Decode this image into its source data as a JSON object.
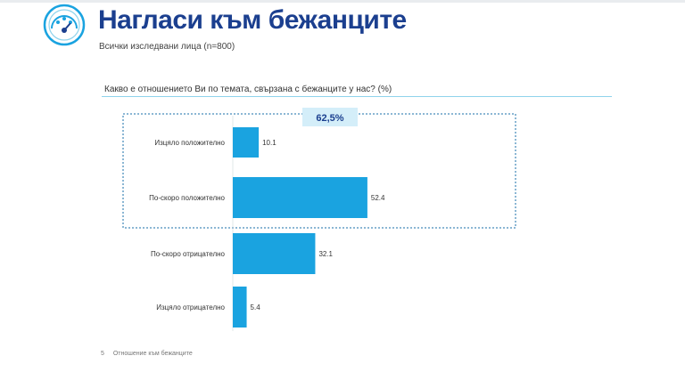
{
  "header": {
    "title": "Нагласи към бежанците",
    "subtitle": "Всички изследвани лица  (n=800)"
  },
  "question": "Какво е отношението Ви по темата, свързана с бежанците у нас? (%)",
  "highlight": {
    "label": "62,5%"
  },
  "colors": {
    "bar": "#1aa3e0",
    "title": "#1b3f8f",
    "accent": "#8fd3ec",
    "box_border": "#1a6fa8"
  },
  "chart_data": {
    "type": "bar",
    "orientation": "horizontal",
    "categories": [
      "Изцяло положително",
      "По-скоро положително",
      "По-скоро отрицателно",
      "Изцяло отрицателно"
    ],
    "values": [
      10.1,
      52.4,
      32.1,
      5.4
    ],
    "value_labels": [
      "10.1",
      "52.4",
      "32.1",
      "5.4"
    ],
    "title": "Какво е отношението Ви по темата, свързана с бежанците у нас? (%)",
    "xlim": [
      0,
      100
    ],
    "grid": false,
    "legend": "none"
  },
  "footer": {
    "page_number": "5",
    "text": "Отношение към бежанците"
  }
}
